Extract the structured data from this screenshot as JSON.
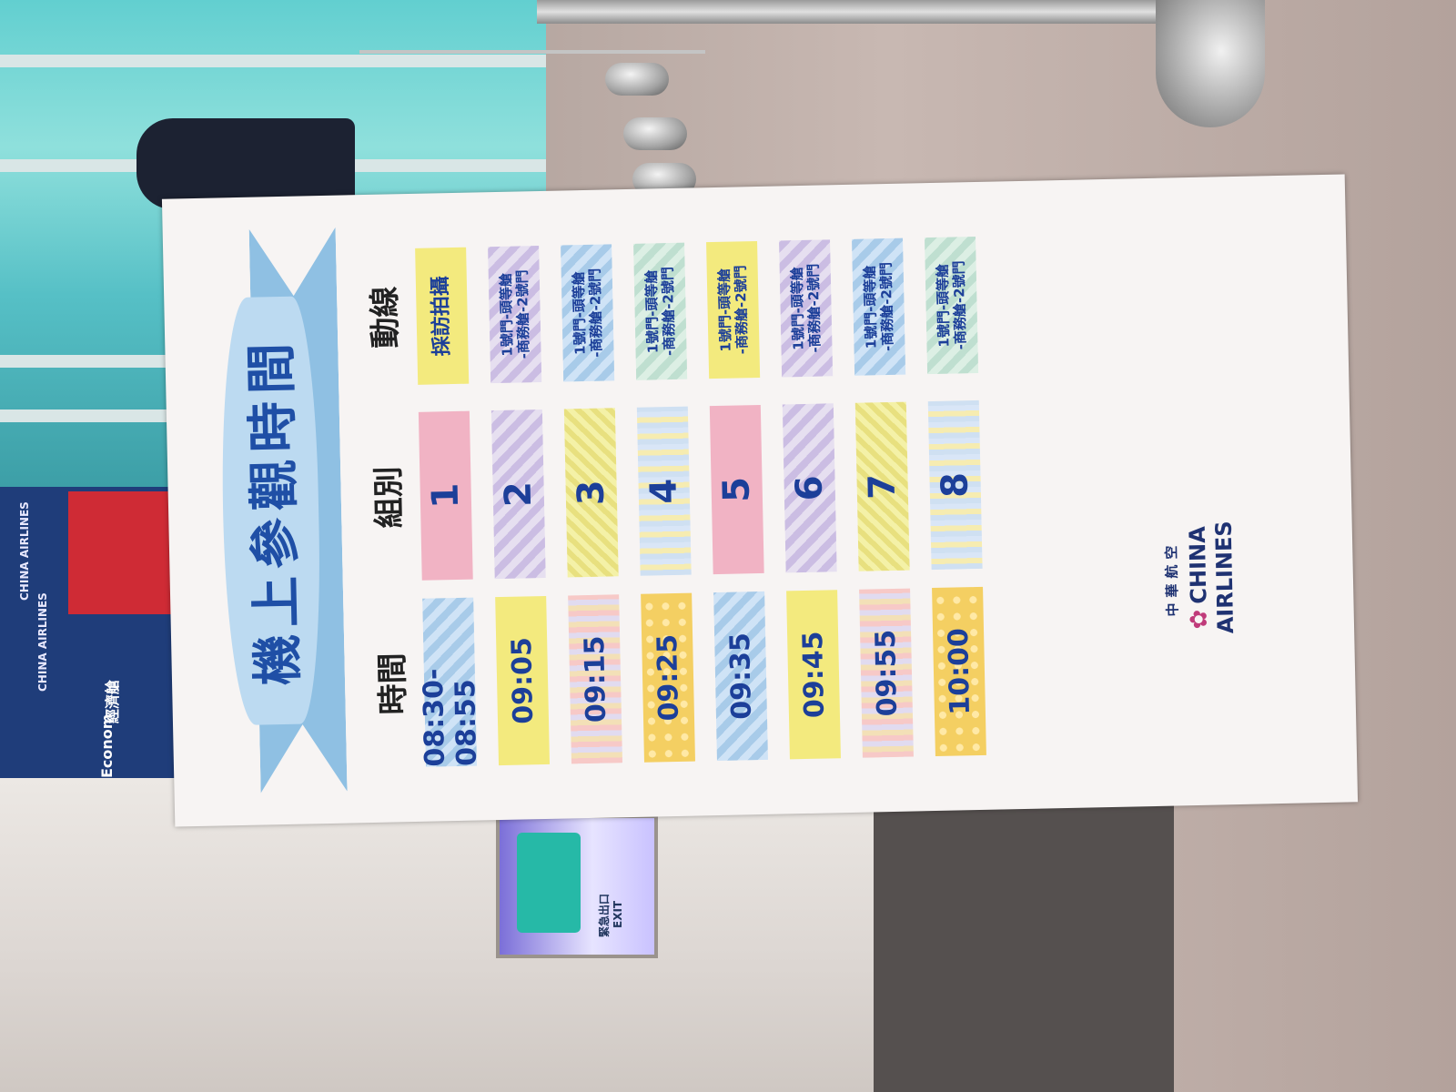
{
  "sign": {
    "title": "機上參觀時間",
    "headers": {
      "time": "時間",
      "group": "組別",
      "route": "動線"
    },
    "rows": [
      {
        "time": "08:30-08:55",
        "group": "1",
        "route_l1": "採訪拍攝",
        "route_l2": ""
      },
      {
        "time": "09:05",
        "group": "2",
        "route_l1": "1號門-頭等艙",
        "route_l2": "-商務艙-2號門"
      },
      {
        "time": "09:15",
        "group": "3",
        "route_l1": "1號門-頭等艙",
        "route_l2": "-商務艙-2號門"
      },
      {
        "time": "09:25",
        "group": "4",
        "route_l1": "1號門-頭等艙",
        "route_l2": "-商務艙-2號門"
      },
      {
        "time": "09:35",
        "group": "5",
        "route_l1": "1號門-頭等艙",
        "route_l2": "-商務艙-2號門"
      },
      {
        "time": "09:45",
        "group": "6",
        "route_l1": "1號門-頭等艙",
        "route_l2": "-商務艙-2號門"
      },
      {
        "time": "09:55",
        "group": "7",
        "route_l1": "1號門-頭等艙",
        "route_l2": "-商務艙-2號門"
      },
      {
        "time": "10:00",
        "group": "8",
        "route_l1": "1號門-頭等艙",
        "route_l2": "-商務艙-2號門"
      }
    ],
    "logo_cn": "中華航空",
    "logo_en": "CHINA AIRLINES"
  },
  "background": {
    "banner_brand": "CHINA AIRLINES",
    "banner_cn": "經濟艙",
    "banner_en": "Econom",
    "exit_cn": "緊急出口",
    "exit_en": "EXIT"
  }
}
